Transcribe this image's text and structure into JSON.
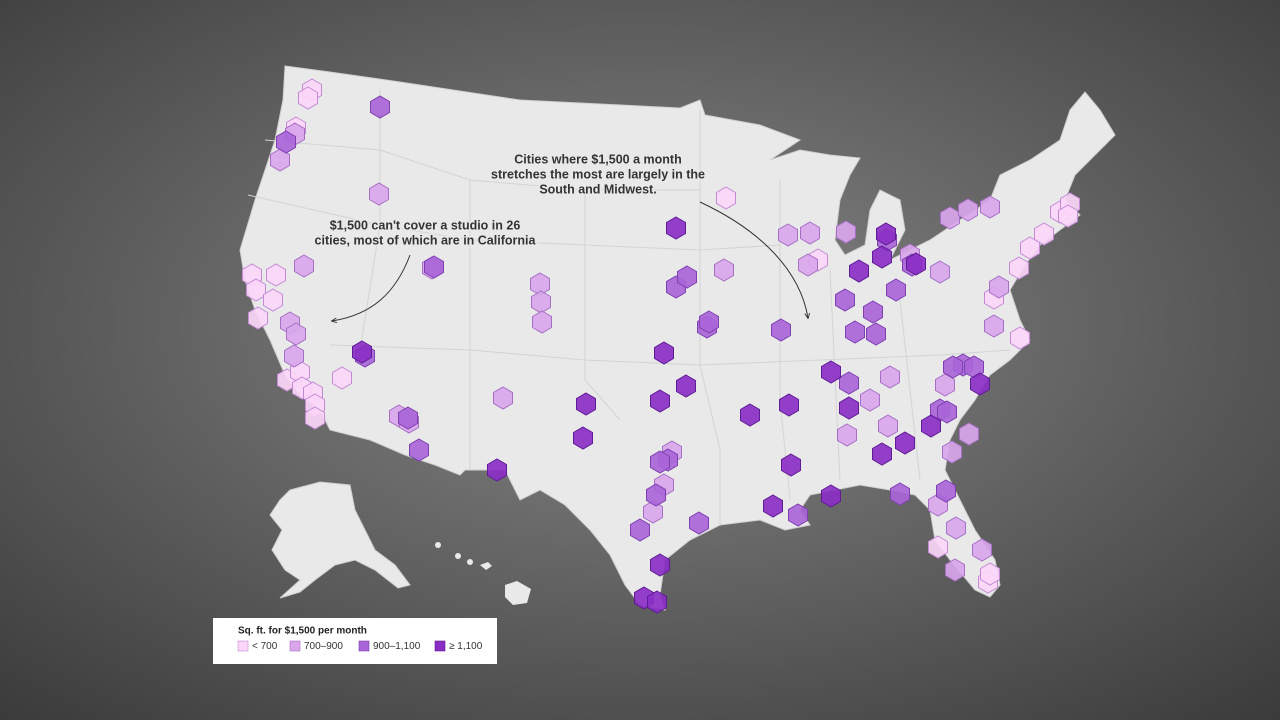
{
  "annotations": [
    {
      "lines": [
        "Cities where $1,500 a month",
        "stretches the most are largely in the",
        "South and Midwest."
      ]
    },
    {
      "lines": [
        "$1,500 can't cover a studio in 26",
        "cities, most of which are in California"
      ]
    }
  ],
  "legend": {
    "title": "Sq. ft. for $1,500 per month",
    "items": [
      {
        "label": "< 700",
        "color": "#fbd6f8"
      },
      {
        "label": "700–900",
        "color": "#d9a6ea"
      },
      {
        "label": "900–1,100",
        "color": "#a965d8"
      },
      {
        "label": "≥ 1,100",
        "color": "#8a2fc6"
      }
    ]
  }
}
